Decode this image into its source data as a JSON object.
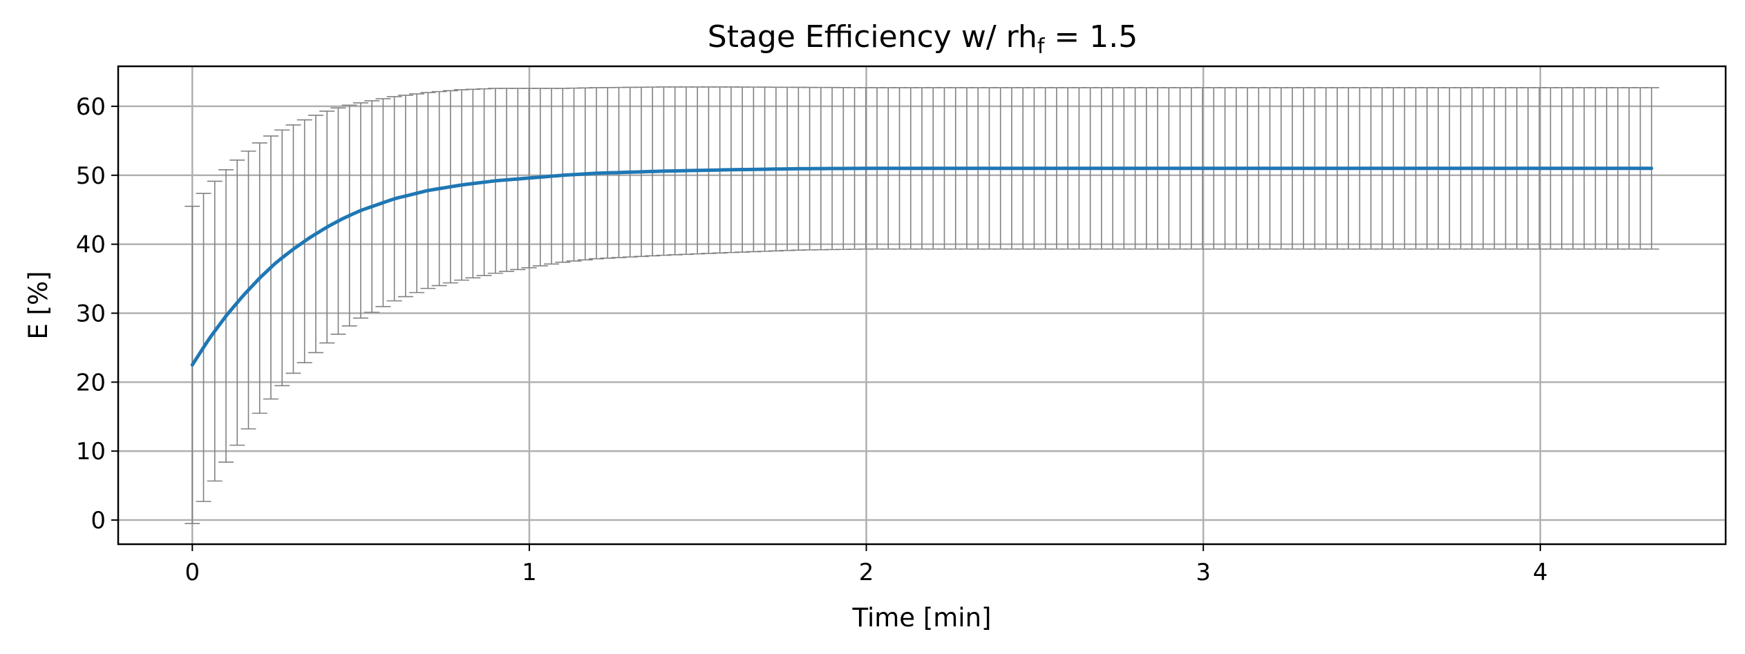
{
  "chart_data": {
    "type": "line",
    "title": "Stage Efficiency w/ rhf = 1.5",
    "title_main": "Stage Efficiency w/ rh",
    "title_sub": "f",
    "title_tail": " = 1.5",
    "xlabel": "Time [min]",
    "ylabel": "E [%]",
    "xlim": [
      -0.22,
      4.55
    ],
    "ylim": [
      -3.5,
      65.8
    ],
    "xticks": [
      0,
      1,
      2,
      3,
      4
    ],
    "yticks": [
      0,
      10,
      20,
      30,
      40,
      50,
      60
    ],
    "grid": true,
    "legend": "none",
    "colors": {
      "line": "#1f77b4",
      "errorbar": "#808080",
      "grid": "#b0b0b0"
    },
    "series": [
      {
        "x": [
          0,
          0.05,
          0.1,
          0.15,
          0.2,
          0.25,
          0.3,
          0.35,
          0.4,
          0.45,
          0.5,
          0.6,
          0.7,
          0.8,
          0.9,
          1.0,
          1.1,
          1.2,
          1.4,
          1.6,
          1.8,
          2.0,
          2.5,
          3.0,
          3.5,
          4.0,
          4.33
        ],
        "y": [
          22.5,
          26.3,
          29.6,
          32.5,
          35.1,
          37.4,
          39.3,
          41.0,
          42.5,
          43.8,
          44.9,
          46.6,
          47.8,
          48.6,
          49.2,
          49.6,
          50.0,
          50.3,
          50.6,
          50.8,
          50.95,
          51.0,
          51.0,
          51.0,
          51.0,
          51.0,
          51.0
        ],
        "error": [
          23.0,
          22.0,
          21.2,
          20.4,
          19.6,
          18.8,
          18.0,
          17.4,
          16.8,
          16.2,
          15.6,
          14.8,
          14.2,
          13.8,
          13.4,
          13.0,
          12.6,
          12.4,
          12.2,
          12.0,
          11.8,
          11.7,
          11.7,
          11.7,
          11.7,
          11.7,
          11.7
        ]
      }
    ],
    "errorbar_spacing_min": 0.0333
  }
}
